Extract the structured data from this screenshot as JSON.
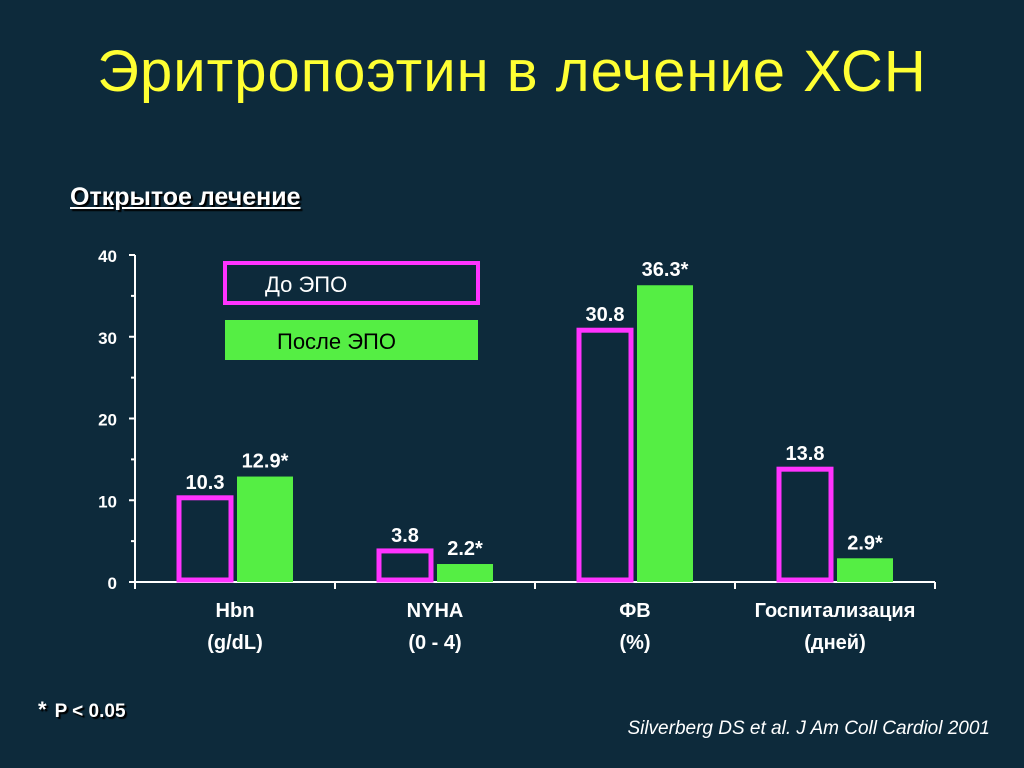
{
  "slide": {
    "title": "Эритропоэтин в лечение ХСН",
    "subtitle": "Открытое лечение",
    "footnote_star": "*",
    "footnote_text": "P < 0.05",
    "citation": "Silverberg DS et al. J Am Coll Cardiol 2001"
  },
  "colors": {
    "background": "#0d2a3b",
    "title": "#ffff33",
    "before_outline": "#ff33ff",
    "after_fill": "#55ee44",
    "axis": "#ffffff"
  },
  "chart_data": {
    "type": "bar",
    "categories": [
      {
        "line1": "Hbn",
        "line2": "(g/dL)"
      },
      {
        "line1": "NYHA",
        "line2": "(0 - 4)"
      },
      {
        "line1": "ФВ",
        "line2": "(%)"
      },
      {
        "line1": "Госпитализация",
        "line2": "(дней)"
      }
    ],
    "series": [
      {
        "name": "До ЭПО",
        "style": "outline",
        "values": [
          10.3,
          3.8,
          30.8,
          13.8
        ],
        "labels": [
          "10.3",
          "3.8",
          "30.8",
          "13.8"
        ]
      },
      {
        "name": "После ЭПО",
        "style": "filled",
        "values": [
          12.9,
          2.2,
          36.3,
          2.9
        ],
        "labels": [
          "12.9*",
          "2.2*",
          "36.3*",
          "2.9*"
        ]
      }
    ],
    "ylim": [
      0,
      40
    ],
    "yticks": [
      "0",
      "10",
      "20",
      "30",
      "40"
    ],
    "legend": "top-left inside plot",
    "grid": false
  }
}
